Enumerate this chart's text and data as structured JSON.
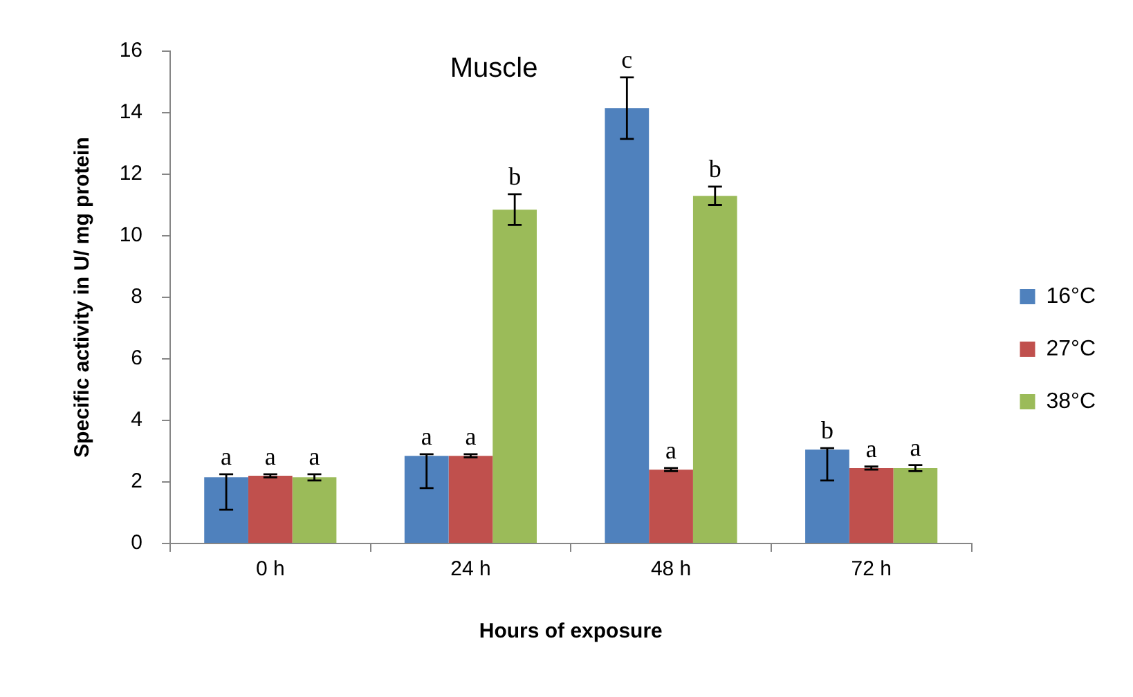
{
  "chart_data": {
    "type": "bar",
    "title": "Muscle",
    "xlabel": "Hours of exposure",
    "ylabel": "Specific activity in U/ mg protein",
    "categories": [
      "0 h",
      "24 h",
      "48 h",
      "72 h"
    ],
    "series": [
      {
        "name": "16°C",
        "color": "#4f81bd",
        "values": [
          2.15,
          2.85,
          14.15,
          3.05
        ],
        "errors": [
          [
            1.1,
            2.25
          ],
          [
            1.8,
            2.9
          ],
          1.0,
          [
            2.05,
            3.1
          ]
        ],
        "value_labels": [
          "a",
          "a",
          "c",
          "b"
        ]
      },
      {
        "name": "27°C",
        "color": "#c0504d",
        "values": [
          2.2,
          2.85,
          2.4,
          2.45
        ],
        "errors": [
          0.05,
          0.05,
          0.05,
          0.05
        ],
        "value_labels": [
          "a",
          "a",
          "a",
          "a"
        ]
      },
      {
        "name": "38°C",
        "color": "#9bbb59",
        "values": [
          2.15,
          10.85,
          11.3,
          2.45
        ],
        "errors": [
          0.1,
          0.5,
          0.3,
          0.1
        ],
        "value_labels": [
          "a",
          "b",
          "b",
          "a"
        ]
      }
    ],
    "ylim": [
      0,
      16
    ],
    "yticks": [
      0,
      2,
      4,
      6,
      8,
      10,
      12,
      14,
      16
    ],
    "legend": "right"
  }
}
